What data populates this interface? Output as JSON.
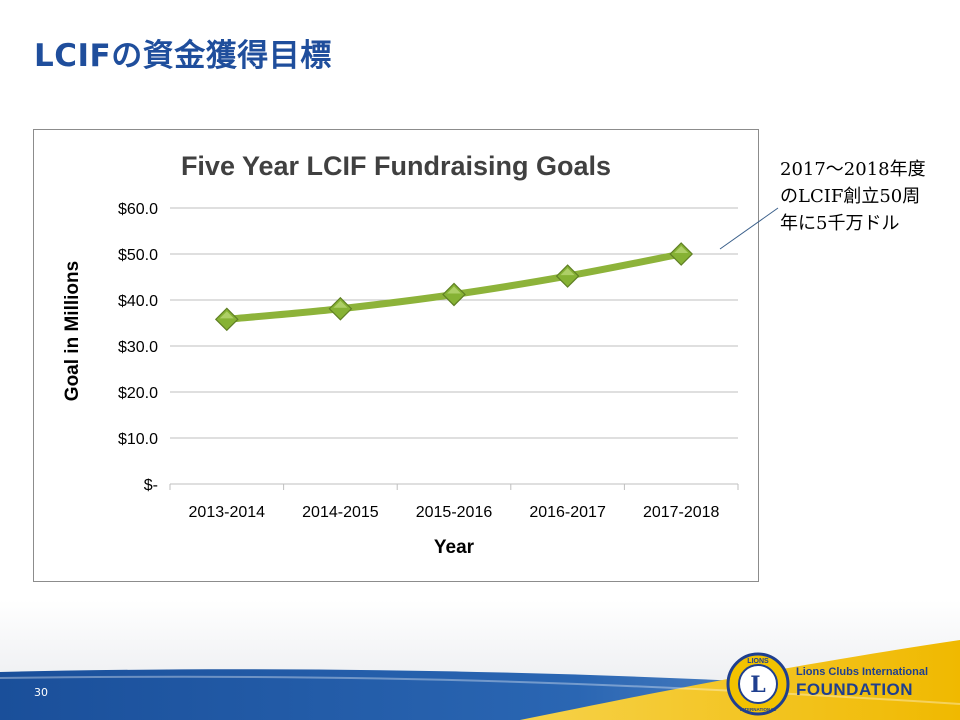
{
  "slide": {
    "title": "LCIFの資金獲得目標",
    "page_number": "30"
  },
  "callout": {
    "lines": [
      "2017～2018年度",
      "のLCIF創立50周",
      "年に5千万ドル"
    ]
  },
  "logo": {
    "line1": "Lions Clubs International",
    "line2": "FOUNDATION",
    "emblem_text_top": "LIONS",
    "emblem_text_bottom": "INTERNATIONAL",
    "emblem_letter": "L"
  },
  "colors": {
    "title": "#1f4e9c",
    "line": "#8db33a",
    "marker": "#86b234",
    "footer_blue": "#1c5aa6",
    "footer_yellow": "#f2c200",
    "logo_blue": "#1f3f8f"
  },
  "chart_data": {
    "type": "line",
    "title": "Five Year LCIF Fundraising Goals",
    "xlabel": "Year",
    "ylabel": "Goal in Millions",
    "categories": [
      "2013-2014",
      "2014-2015",
      "2015-2016",
      "2016-2017",
      "2017-2018"
    ],
    "series": [
      {
        "values": [
          35.8,
          38.1,
          41.2,
          45.2,
          50.0
        ]
      }
    ],
    "ylim": [
      0,
      60
    ],
    "yticks": [
      0,
      10,
      20,
      30,
      40,
      50,
      60
    ],
    "ytick_labels": [
      "$-",
      "$10.0",
      "$20.0",
      "$30.0",
      "$40.0",
      "$50.0",
      "$60.0"
    ],
    "grid": true,
    "legend": "none",
    "marker": "diamond"
  }
}
